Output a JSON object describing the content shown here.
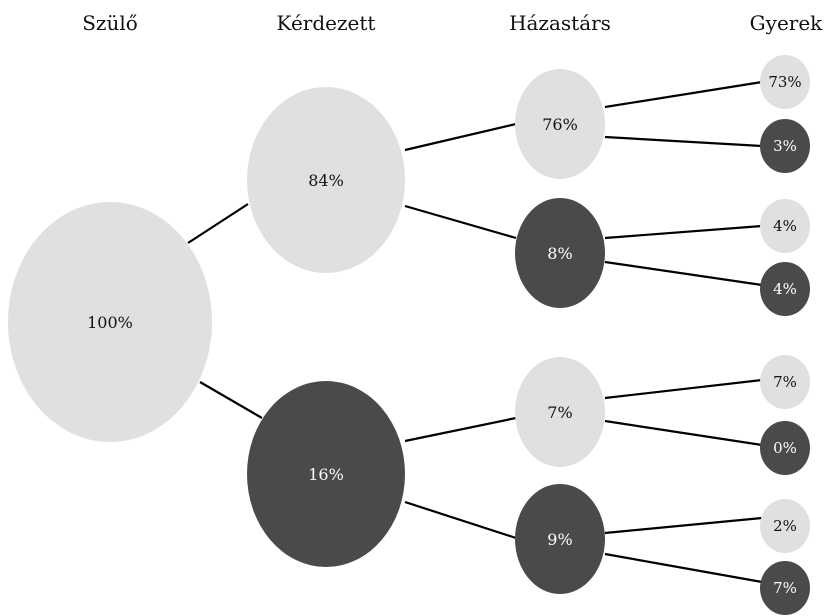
{
  "headers": {
    "level0": "Szülő",
    "level1": "Kérdezett",
    "level2": "Házastárs",
    "level3": "Gyerek"
  },
  "colors": {
    "light": "#e0e0e0",
    "dark": "#4a4a4a",
    "text_on_light": "#111111",
    "text_on_dark": "#ffffff",
    "edge": "#000000"
  },
  "nodes": {
    "root": {
      "label": "100%",
      "shade": "light"
    },
    "k1": {
      "label": "84%",
      "shade": "light"
    },
    "k2": {
      "label": "16%",
      "shade": "dark"
    },
    "h1": {
      "label": "76%",
      "shade": "light"
    },
    "h2": {
      "label": "8%",
      "shade": "dark"
    },
    "h3": {
      "label": "7%",
      "shade": "light"
    },
    "h4": {
      "label": "9%",
      "shade": "dark"
    },
    "g1": {
      "label": "73%",
      "shade": "light"
    },
    "g2": {
      "label": "3%",
      "shade": "dark"
    },
    "g3": {
      "label": "4%",
      "shade": "light"
    },
    "g4": {
      "label": "4%",
      "shade": "dark"
    },
    "g5": {
      "label": "7%",
      "shade": "light"
    },
    "g6": {
      "label": "0%",
      "shade": "dark"
    },
    "g7": {
      "label": "2%",
      "shade": "light"
    },
    "g8": {
      "label": "7%",
      "shade": "dark"
    }
  }
}
